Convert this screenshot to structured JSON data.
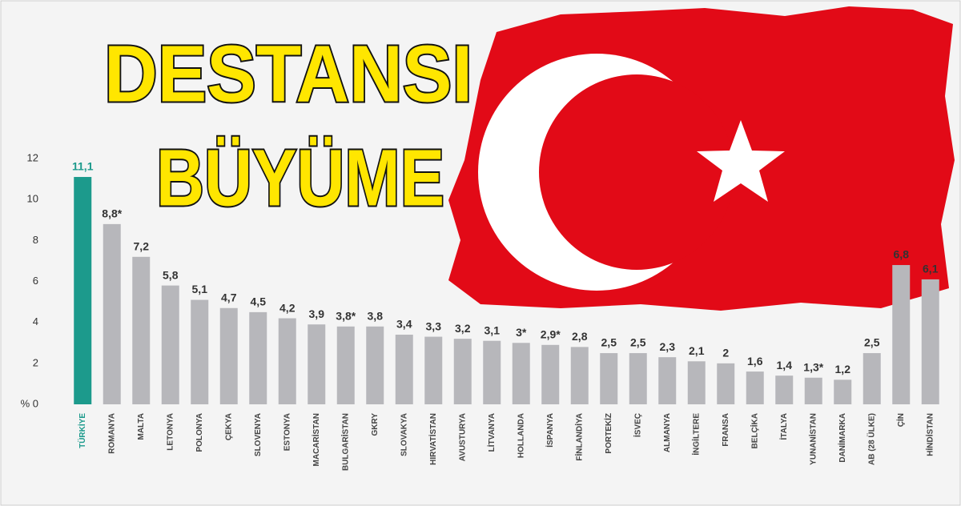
{
  "chart_data": {
    "type": "bar",
    "title": "DESTANSI",
    "subtitle": "BÜYÜME",
    "categories": [
      "TÜRKİYE",
      "ROMANYA",
      "MALTA",
      "LETONYA",
      "POLONYA",
      "ÇEKYA",
      "SLOVENYA",
      "ESTONYA",
      "MACARİSTAN",
      "BULGARİSTAN",
      "GKRY",
      "SLOVAKYA",
      "HIRVATİSTAN",
      "AVUSTURYA",
      "LİTVANYA",
      "HOLLANDA",
      "İSPANYA",
      "FİNLANDİYA",
      "PORTEKİZ",
      "İSVEÇ",
      "ALMANYA",
      "İNGİLTERE",
      "FRANSA",
      "BELÇİKA",
      "İTALYA",
      "YUNANİSTAN",
      "DANİMARKA",
      "AB (28 ÜLKE)",
      "ÇİN",
      "HİNDİSTAN"
    ],
    "values": [
      11.1,
      8.8,
      7.2,
      5.8,
      5.1,
      4.7,
      4.5,
      4.2,
      3.9,
      3.8,
      3.8,
      3.4,
      3.3,
      3.2,
      3.1,
      3,
      2.9,
      2.8,
      2.5,
      2.5,
      2.3,
      2.1,
      2,
      1.6,
      1.4,
      1.3,
      1.2,
      2.5,
      6.8,
      6.1
    ],
    "value_labels": [
      "11,1",
      "8,8*",
      "7,2",
      "5,8",
      "5,1",
      "4,7",
      "4,5",
      "4,2",
      "3,9",
      "3,8*",
      "3,8",
      "3,4",
      "3,3",
      "3,2",
      "3,1",
      "3*",
      "2,9*",
      "2,8",
      "2,5",
      "2,5",
      "2,3",
      "2,1",
      "2",
      "1,6",
      "1,4",
      "1,3*",
      "1,2",
      "2,5",
      "6,8",
      "6,1"
    ],
    "colors": [
      "#1c9a8c",
      "#b7b7bb",
      "#b7b7bb",
      "#b7b7bb",
      "#b7b7bb",
      "#b7b7bb",
      "#b7b7bb",
      "#b7b7bb",
      "#b7b7bb",
      "#b7b7bb",
      "#b7b7bb",
      "#b7b7bb",
      "#b7b7bb",
      "#b7b7bb",
      "#b7b7bb",
      "#b7b7bb",
      "#b7b7bb",
      "#b7b7bb",
      "#b7b7bb",
      "#b7b7bb",
      "#b7b7bb",
      "#b7b7bb",
      "#b7b7bb",
      "#b7b7bb",
      "#b7b7bb",
      "#b7b7bb",
      "#b7b7bb",
      "#b7b7bb",
      "#b7b7bb",
      "#b7b7bb"
    ],
    "highlight_color": "#1c9a8c",
    "ylim": [
      0,
      12
    ],
    "yticks": [
      {
        "value": 0,
        "label": "% 0"
      },
      2,
      4,
      6,
      8,
      10,
      12
    ],
    "grid": false
  }
}
